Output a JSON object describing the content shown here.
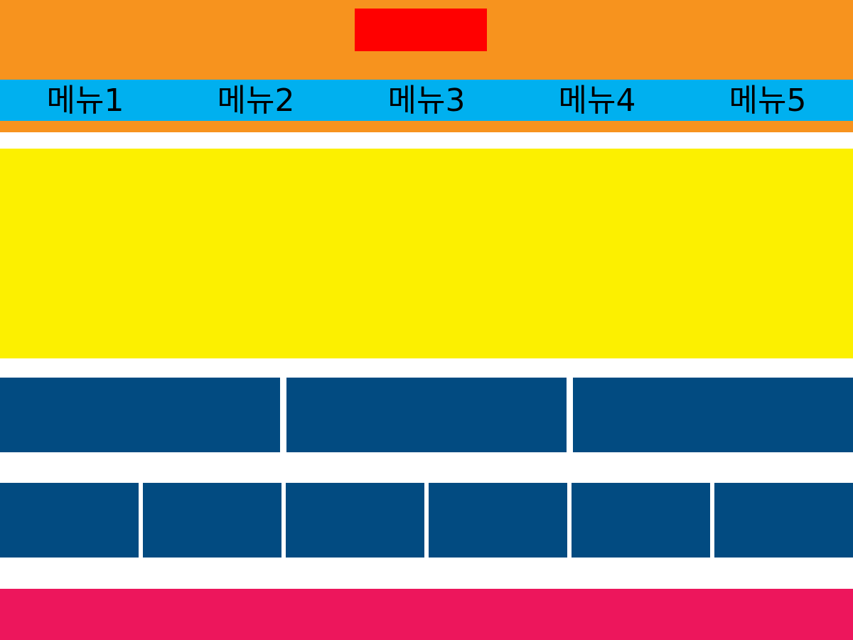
{
  "header": {
    "nav": [
      {
        "label": "메뉴1"
      },
      {
        "label": "메뉴2"
      },
      {
        "label": "메뉴3"
      },
      {
        "label": "메뉴4"
      },
      {
        "label": "메뉴5"
      }
    ]
  },
  "colors": {
    "header_bg": "#f7931e",
    "logo": "#ff0000",
    "nav_bg": "#00b0ef",
    "hero_bg": "#fcf000",
    "card_bg": "#024b81",
    "footer_bg": "#ed165c"
  }
}
